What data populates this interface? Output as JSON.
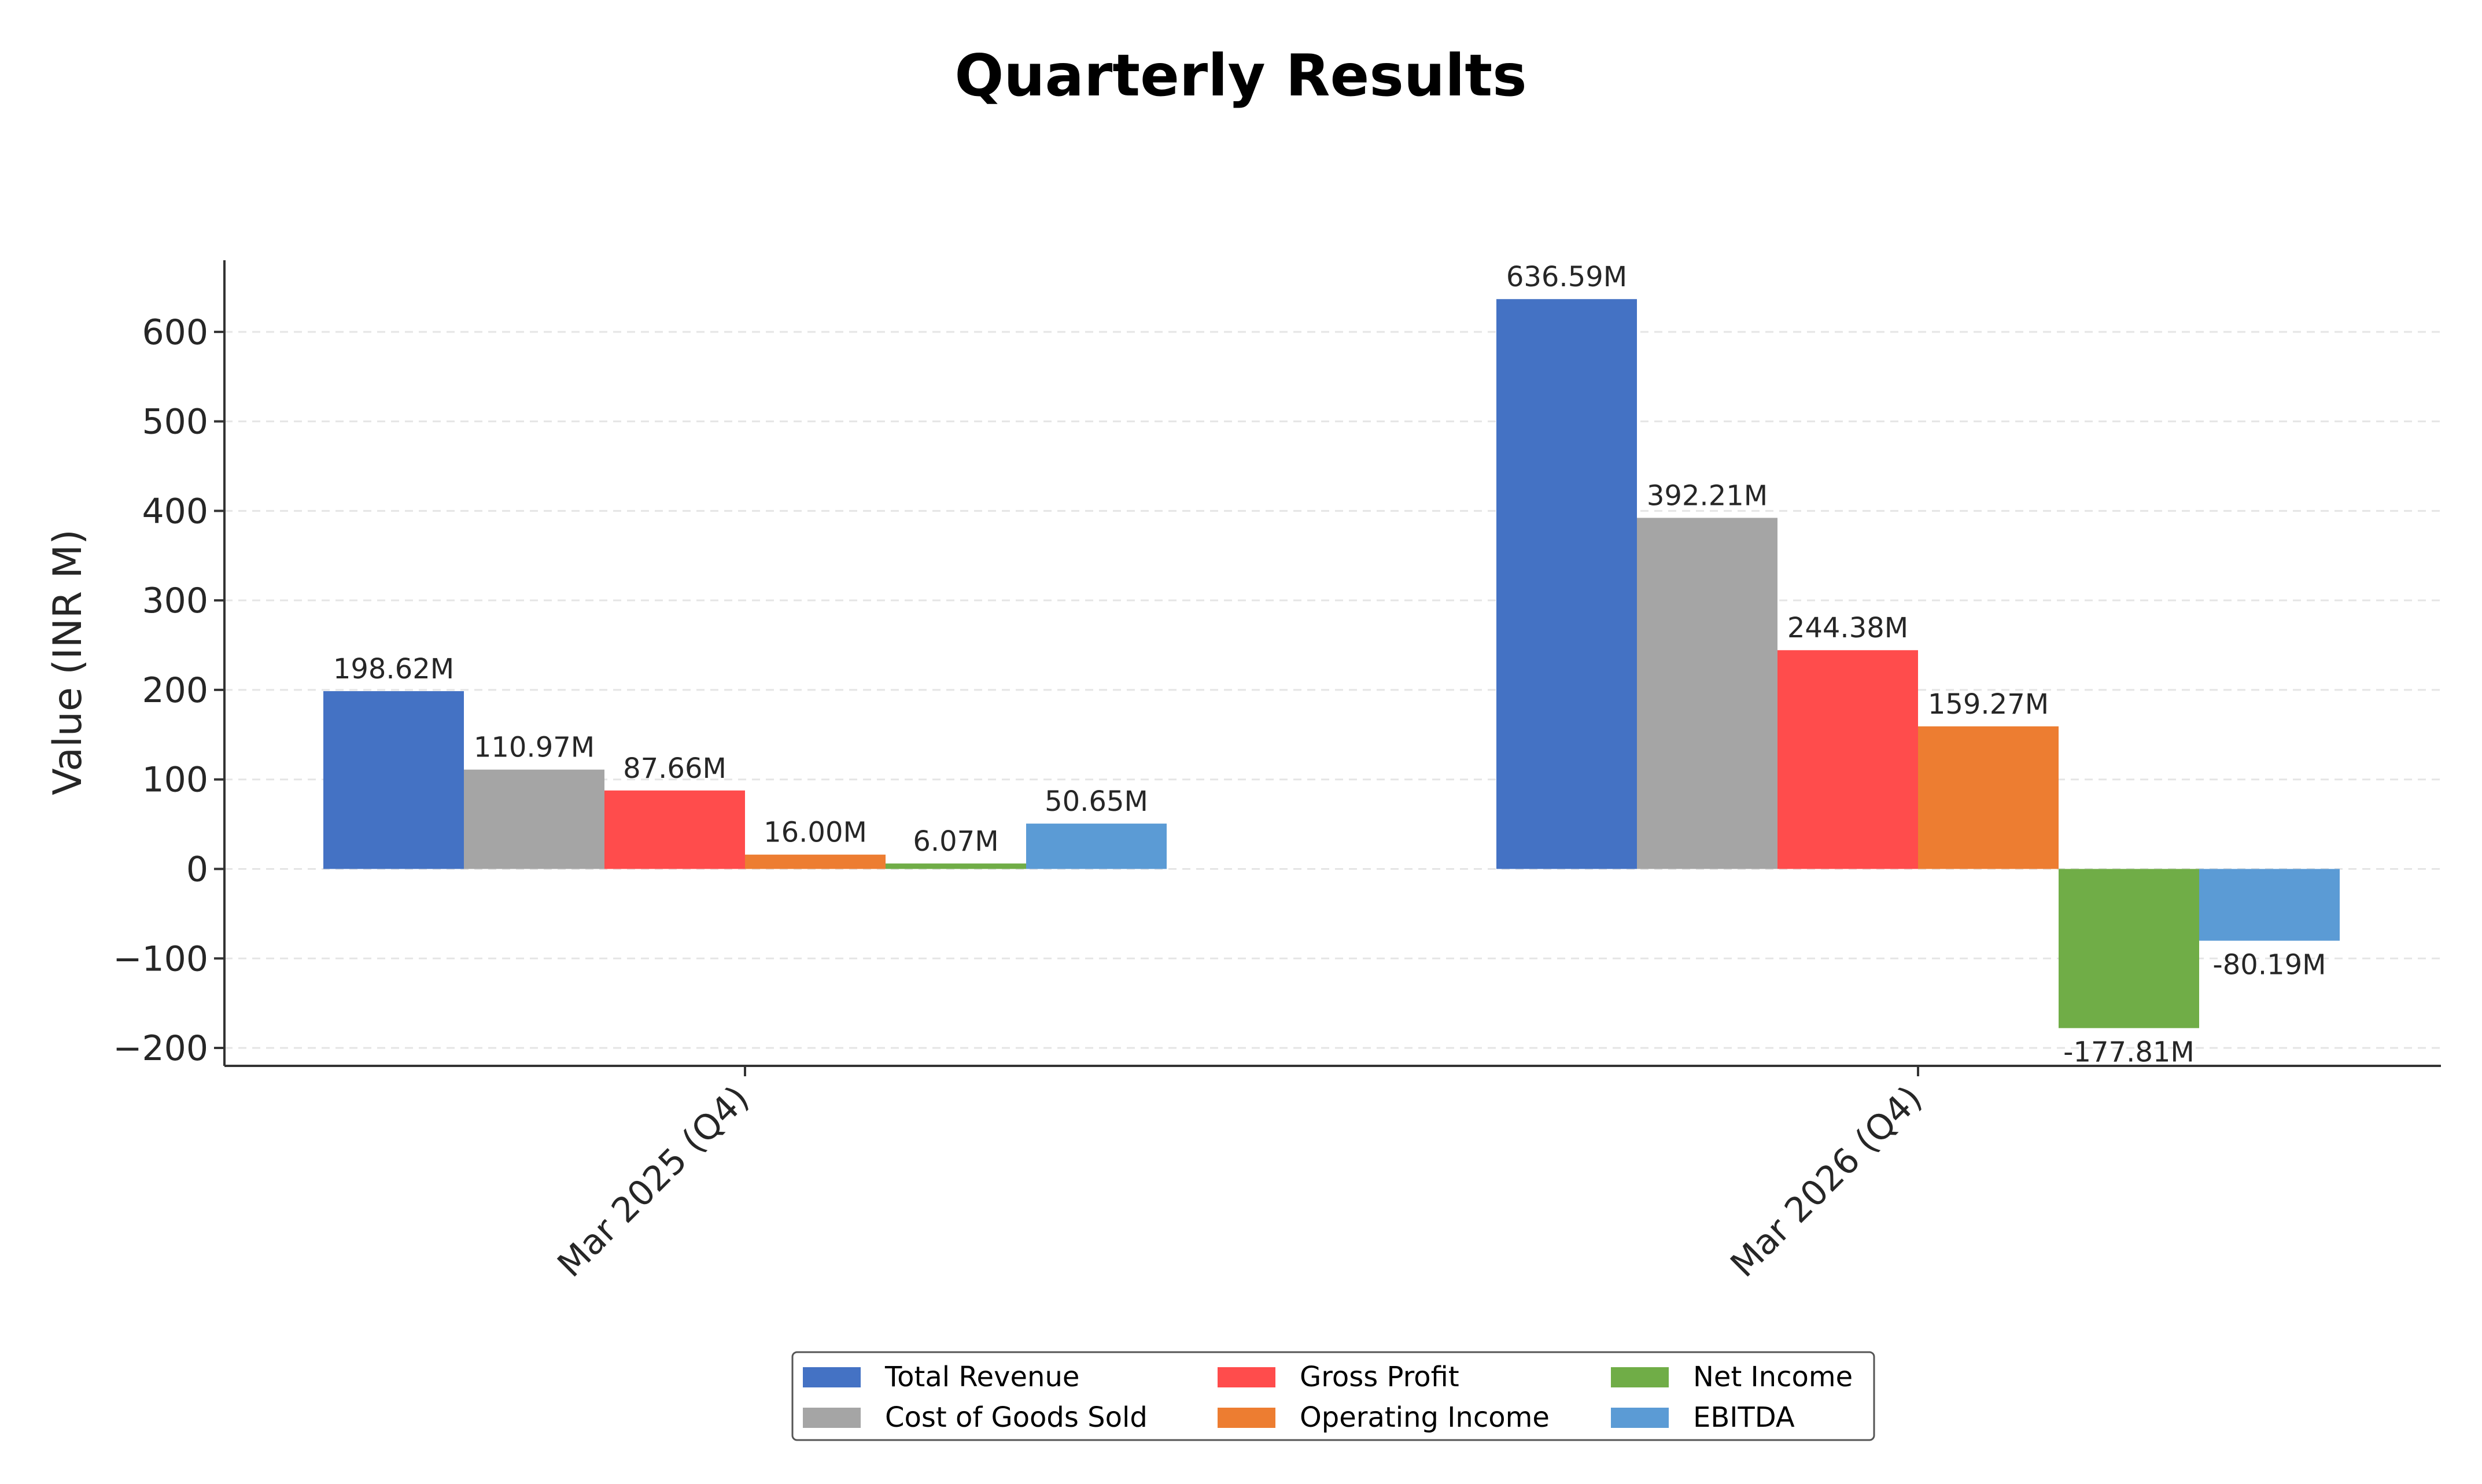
{
  "chart_data": {
    "type": "bar",
    "title": "Quarterly Results",
    "xlabel": "",
    "ylabel": "Value (INR M)",
    "ylim": [
      -220,
      680
    ],
    "yticks": [
      -200,
      -100,
      0,
      100,
      200,
      300,
      400,
      500,
      600
    ],
    "ytick_labels": [
      "−200",
      "−100",
      "0",
      "100",
      "200",
      "300",
      "400",
      "500",
      "600"
    ],
    "categories": [
      "Mar 2025 (Q4)",
      "Mar 2026 (Q4)"
    ],
    "grid": true,
    "legend_position": "bottom-center",
    "series": [
      {
        "name": "Total Revenue",
        "color": "#4472C4",
        "values": [
          198.62,
          636.59
        ],
        "labels": [
          "198.62M",
          "636.59M"
        ]
      },
      {
        "name": "Cost of Goods Sold",
        "color": "#A5A5A5",
        "values": [
          110.97,
          392.21
        ],
        "labels": [
          "110.97M",
          "392.21M"
        ]
      },
      {
        "name": "Gross Profit",
        "color": "#FF4C4C",
        "values": [
          87.66,
          244.38
        ],
        "labels": [
          "87.66M",
          "244.38M"
        ]
      },
      {
        "name": "Operating Income",
        "color": "#ED7D31",
        "values": [
          16.0,
          159.27
        ],
        "labels": [
          "16.00M",
          "159.27M"
        ]
      },
      {
        "name": "Net Income",
        "color": "#70AD47",
        "values": [
          6.07,
          -177.81
        ],
        "labels": [
          "6.07M",
          "-177.81M"
        ]
      },
      {
        "name": "EBITDA",
        "color": "#5B9BD5",
        "values": [
          50.65,
          -80.19
        ],
        "labels": [
          "50.65M",
          "-80.19M"
        ]
      }
    ]
  }
}
